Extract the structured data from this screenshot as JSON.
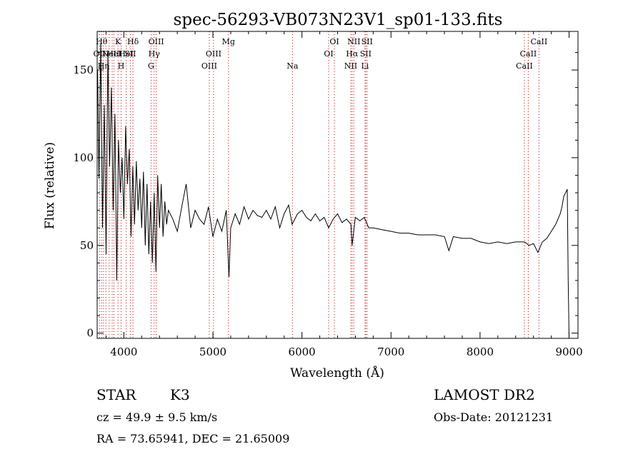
{
  "chart_data": {
    "type": "line",
    "title": "spec-56293-VB073N23V1_sp01-133.fits",
    "xlabel": "Wavelength (Å)",
    "ylabel": "Flux (relative)",
    "xlim": [
      3700,
      9100
    ],
    "ylim": [
      -3,
      172
    ],
    "xticks": [
      4000,
      5000,
      6000,
      7000,
      8000,
      9000
    ],
    "yticks": [
      0,
      50,
      100,
      150
    ],
    "grid": false,
    "legend": "none",
    "line_color": "#000000",
    "marker_color": "#cc0000",
    "series": [
      {
        "x": [
          3705,
          3720,
          3740,
          3760,
          3780,
          3800,
          3820,
          3840,
          3860,
          3880,
          3900,
          3920,
          3940,
          3960,
          3980,
          4000,
          4020,
          4040,
          4060,
          4080,
          4100,
          4120,
          4140,
          4160,
          4180,
          4200,
          4220,
          4240,
          4260,
          4280,
          4300,
          4320,
          4340,
          4360,
          4380,
          4400,
          4420,
          4440,
          4460,
          4480,
          4500,
          4550,
          4600,
          4650,
          4700,
          4750,
          4800,
          4850,
          4900,
          4950,
          5000,
          5050,
          5100,
          5150,
          5180,
          5200,
          5250,
          5300,
          5350,
          5400,
          5450,
          5500,
          5550,
          5600,
          5650,
          5700,
          5750,
          5800,
          5850,
          5890,
          5950,
          6000,
          6050,
          6100,
          6150,
          6200,
          6250,
          6300,
          6350,
          6400,
          6450,
          6500,
          6550,
          6563,
          6600,
          6650,
          6700,
          6750,
          6800,
          6900,
          7000,
          7100,
          7200,
          7300,
          7400,
          7500,
          7600,
          7650,
          7700,
          7800,
          7900,
          8000,
          8100,
          8200,
          8300,
          8400,
          8500,
          8550,
          8600,
          8650,
          8700,
          8750,
          8800,
          8850,
          8900,
          8920,
          8940,
          8960,
          8980,
          8990,
          9000
        ],
        "y": [
          150,
          88,
          165,
          60,
          130,
          45,
          160,
          95,
          140,
          70,
          125,
          30,
          110,
          80,
          100,
          65,
          118,
          85,
          105,
          55,
          95,
          62,
          98,
          70,
          88,
          60,
          92,
          50,
          85,
          45,
          75,
          40,
          80,
          35,
          90,
          60,
          85,
          55,
          75,
          62,
          70,
          65,
          58,
          72,
          85,
          60,
          70,
          65,
          62,
          72,
          55,
          65,
          58,
          70,
          32,
          60,
          68,
          62,
          72,
          65,
          70,
          67,
          66,
          70,
          65,
          72,
          60,
          68,
          73,
          62,
          68,
          70,
          66,
          64,
          68,
          64,
          66,
          60,
          65,
          68,
          63,
          65,
          62,
          50,
          66,
          64,
          66,
          60,
          60,
          59,
          58,
          57,
          57,
          56,
          56,
          56,
          55,
          47,
          55,
          54,
          54,
          52,
          51,
          52,
          51,
          52,
          52,
          50,
          51,
          46,
          52,
          54,
          58,
          62,
          68,
          72,
          78,
          80,
          82,
          30,
          -2
        ]
      }
    ],
    "line_markers": [
      {
        "x": 3727,
        "label": "OII",
        "row": 2
      },
      {
        "x": 3750,
        "label": "Hθ",
        "row": 1
      },
      {
        "x": 3771,
        "label": "Hη",
        "row": 3
      },
      {
        "x": 3798,
        "label": "",
        "row": 0
      },
      {
        "x": 3835,
        "label": "",
        "row": 0
      },
      {
        "x": 3869,
        "label": "NeIII",
        "row": 2
      },
      {
        "x": 3889,
        "label": "HeI",
        "row": 2
      },
      {
        "x": 3934,
        "label": "K",
        "row": 1
      },
      {
        "x": 3969,
        "label": "H",
        "row": 3
      },
      {
        "x": 4026,
        "label": "HeI",
        "row": 2
      },
      {
        "x": 4072,
        "label": "SII",
        "row": 2
      },
      {
        "x": 4102,
        "label": "Hδ",
        "row": 1
      },
      {
        "x": 4305,
        "label": "G",
        "row": 3
      },
      {
        "x": 4340,
        "label": "Hγ",
        "row": 2
      },
      {
        "x": 4363,
        "label": "OIII",
        "row": 1
      },
      {
        "x": 4959,
        "label": "OIII",
        "row": 3
      },
      {
        "x": 5007,
        "label": "OIII",
        "row": 2
      },
      {
        "x": 5175,
        "label": "Mg",
        "row": 1
      },
      {
        "x": 5893,
        "label": "Na",
        "row": 3
      },
      {
        "x": 6300,
        "label": "OI",
        "row": 2
      },
      {
        "x": 6364,
        "label": "OI",
        "row": 1
      },
      {
        "x": 6548,
        "label": "NII",
        "row": 3
      },
      {
        "x": 6563,
        "label": "Hα",
        "row": 2
      },
      {
        "x": 6583,
        "label": "NII",
        "row": 1
      },
      {
        "x": 6708,
        "label": "Li",
        "row": 3
      },
      {
        "x": 6716,
        "label": "SII",
        "row": 2
      },
      {
        "x": 6731,
        "label": "SII",
        "row": 1
      },
      {
        "x": 8498,
        "label": "CaII",
        "row": 3
      },
      {
        "x": 8542,
        "label": "CaII",
        "row": 2
      },
      {
        "x": 8662,
        "label": "CaII",
        "row": 1
      }
    ]
  },
  "info": {
    "obj_class": "STAR",
    "obj_subclass": "K3",
    "survey": "LAMOST DR2",
    "cz": "cz = 49.9 ± 9.5 km/s",
    "obs_date": "Obs-Date: 20121231",
    "radec": "RA =  73.65941, DEC =  21.65009"
  }
}
